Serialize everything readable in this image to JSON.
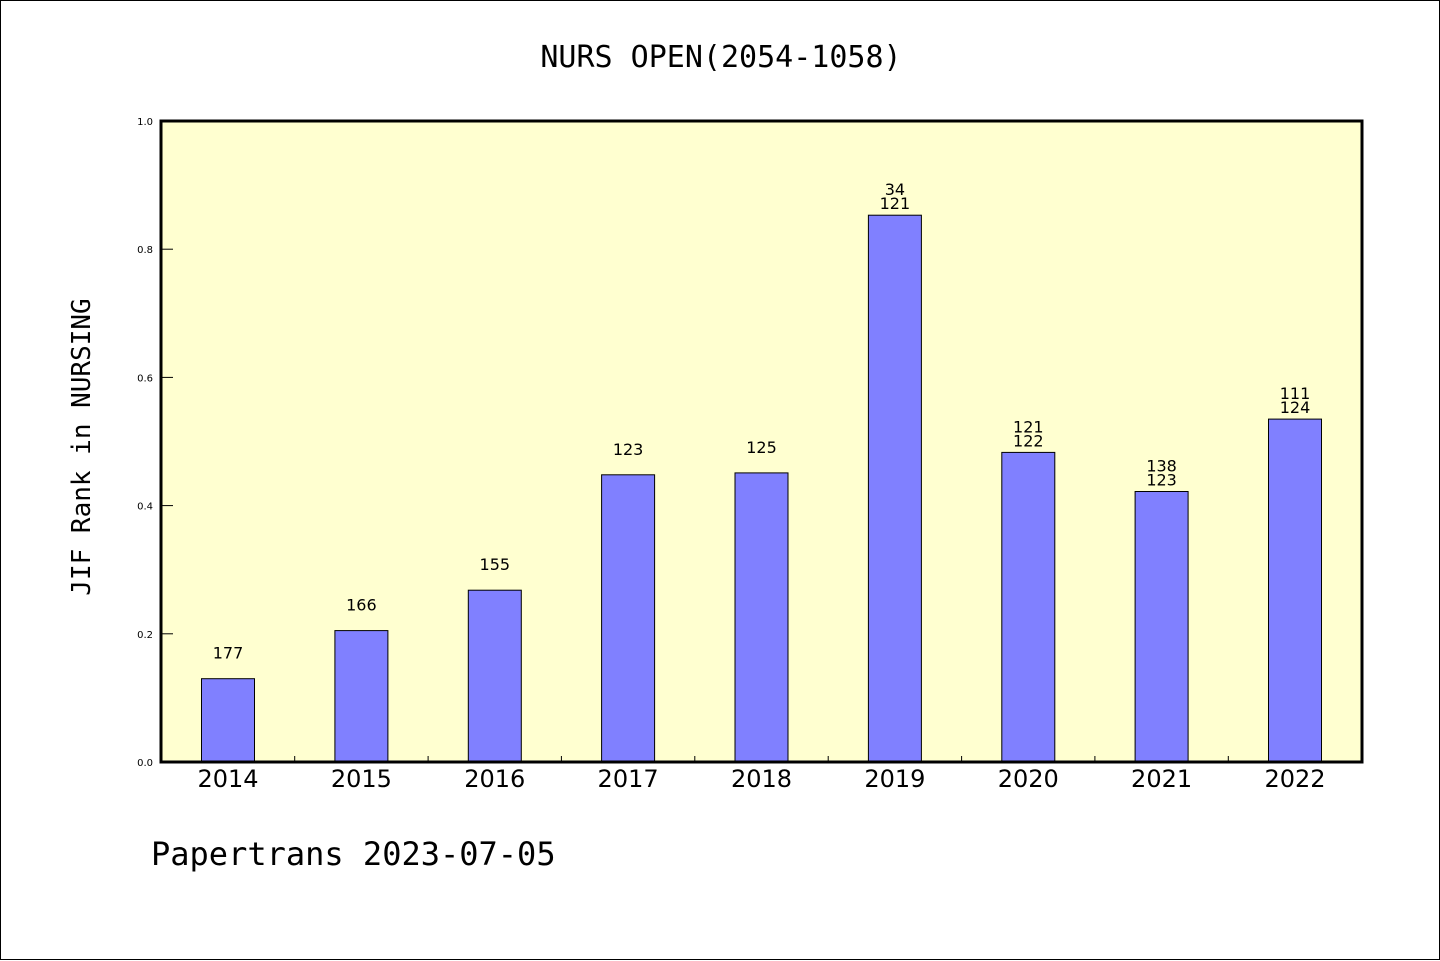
{
  "chart_data": {
    "type": "bar",
    "title": "NURS OPEN(2054-1058)",
    "ylabel": "JIF Rank in NURSING",
    "xlabel": "",
    "footer": "Papertrans 2023-07-05",
    "categories": [
      "2014",
      "2015",
      "2016",
      "2017",
      "2018",
      "2019",
      "2020",
      "2021",
      "2022"
    ],
    "values": [
      0.13,
      0.205,
      0.268,
      0.448,
      0.451,
      0.853,
      0.483,
      0.422,
      0.535
    ],
    "bar_labels": [
      [
        "177"
      ],
      [
        "166"
      ],
      [
        "155"
      ],
      [
        "123"
      ],
      [
        "125"
      ],
      [
        "34",
        "121"
      ],
      [
        "121",
        "122"
      ],
      [
        "138",
        "123"
      ],
      [
        "111",
        "124"
      ]
    ],
    "yticks": [
      "0.0",
      "0.2",
      "0.4",
      "0.6",
      "0.8",
      "1.0"
    ],
    "ylim": [
      0,
      1.0
    ],
    "grid": false,
    "colors": {
      "bar": "#8080ff",
      "plot_background": "#ffffd0",
      "axis": "#000000"
    }
  }
}
